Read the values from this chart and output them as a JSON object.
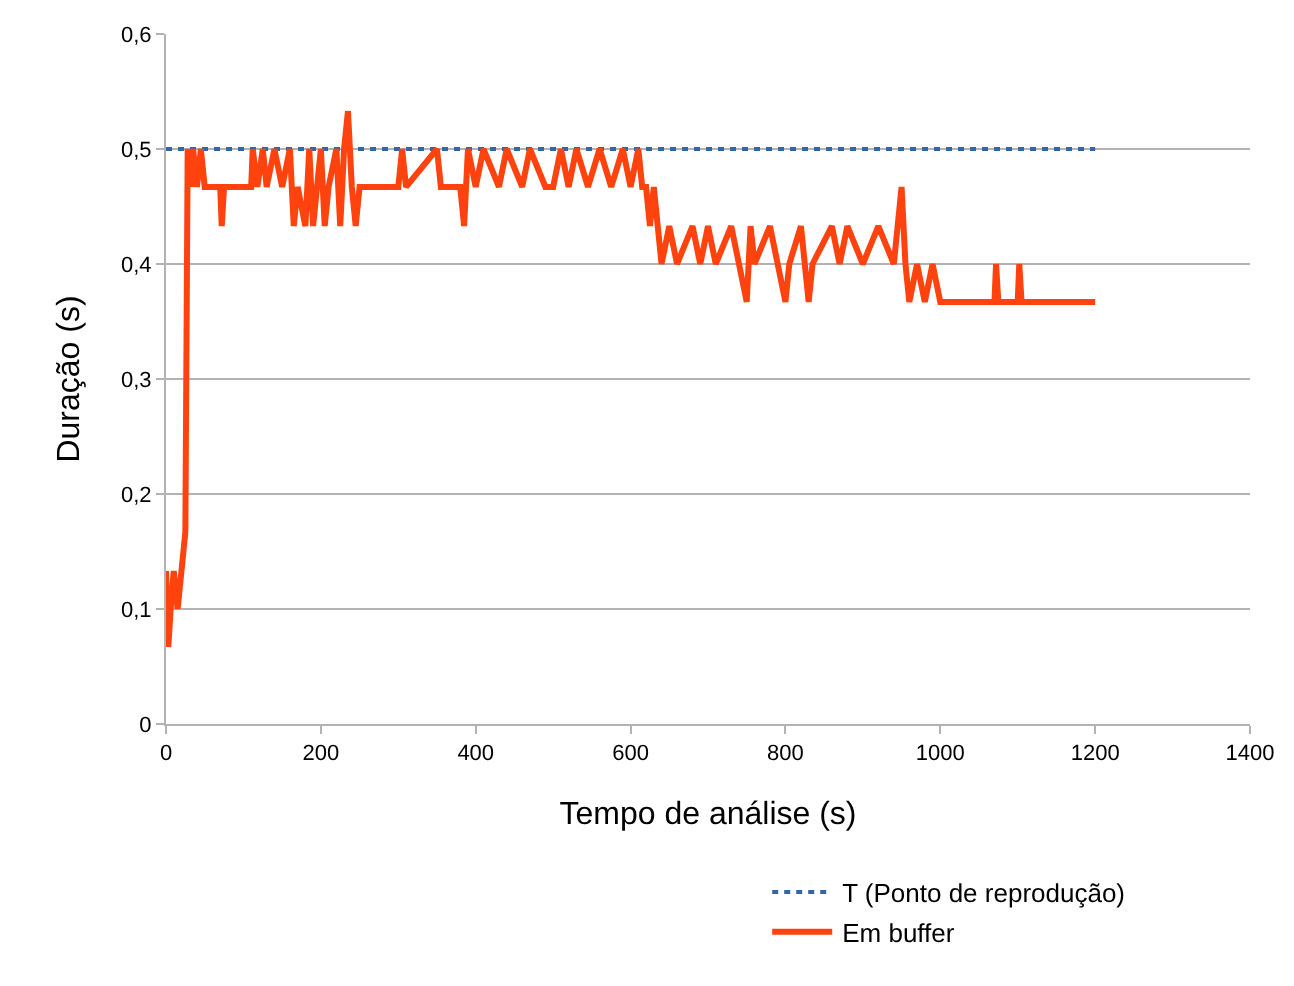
{
  "chart_data": {
    "type": "line",
    "xlabel": "Tempo de análise (s)",
    "ylabel": "Duração (s)",
    "xlim": [
      0,
      1400
    ],
    "xticks": [
      0,
      200,
      400,
      600,
      800,
      1000,
      1200,
      1400
    ],
    "ylim": [
      0,
      0.6
    ],
    "yticks": [
      {
        "value": 0,
        "label": "0"
      },
      {
        "value": 0.1,
        "label": "0,1"
      },
      {
        "value": 0.2,
        "label": "0,2"
      },
      {
        "value": 0.3,
        "label": "0,3"
      },
      {
        "value": 0.4,
        "label": "0,4"
      },
      {
        "value": 0.5,
        "label": "0,5"
      },
      {
        "value": 0.6,
        "label": "0,6"
      }
    ],
    "grid": "y",
    "legend": "bottom",
    "series": [
      {
        "name": "T (Ponto de reprodução)",
        "color": "#3465a4",
        "line_style": "dotted",
        "x": [
          0,
          1200
        ],
        "values": [
          0.5,
          0.5
        ]
      },
      {
        "name": "Em buffer",
        "color": "#ff420e",
        "line_style": "solid",
        "x": [
          0,
          3,
          6,
          10,
          15,
          20,
          25,
          28,
          32,
          35,
          40,
          45,
          50,
          70,
          72,
          75,
          110,
          112,
          118,
          125,
          130,
          140,
          150,
          160,
          165,
          170,
          180,
          185,
          190,
          200,
          205,
          210,
          220,
          225,
          230,
          235,
          240,
          245,
          250,
          300,
          305,
          310,
          350,
          355,
          380,
          385,
          390,
          400,
          410,
          430,
          440,
          460,
          470,
          490,
          500,
          510,
          520,
          530,
          545,
          560,
          575,
          590,
          600,
          610,
          615,
          620,
          625,
          630,
          640,
          650,
          660,
          680,
          690,
          700,
          710,
          730,
          740,
          750,
          755,
          760,
          780,
          790,
          800,
          805,
          820,
          830,
          835,
          860,
          870,
          880,
          900,
          920,
          940,
          950,
          955,
          960,
          970,
          980,
          990,
          1000,
          1070,
          1072,
          1075,
          1100,
          1102,
          1105,
          1200
        ],
        "values": [
          0.133,
          0.067,
          0.1,
          0.133,
          0.1,
          0.133,
          0.167,
          0.5,
          0.467,
          0.5,
          0.467,
          0.5,
          0.467,
          0.467,
          0.433,
          0.467,
          0.467,
          0.5,
          0.467,
          0.5,
          0.467,
          0.5,
          0.467,
          0.5,
          0.433,
          0.467,
          0.433,
          0.5,
          0.433,
          0.5,
          0.433,
          0.467,
          0.5,
          0.433,
          0.5,
          0.533,
          0.467,
          0.433,
          0.467,
          0.467,
          0.5,
          0.467,
          0.5,
          0.467,
          0.467,
          0.433,
          0.5,
          0.467,
          0.5,
          0.467,
          0.5,
          0.467,
          0.5,
          0.467,
          0.467,
          0.5,
          0.467,
          0.5,
          0.467,
          0.5,
          0.467,
          0.5,
          0.467,
          0.5,
          0.467,
          0.467,
          0.433,
          0.467,
          0.4,
          0.433,
          0.4,
          0.433,
          0.4,
          0.433,
          0.4,
          0.433,
          0.4,
          0.367,
          0.433,
          0.4,
          0.433,
          0.4,
          0.367,
          0.4,
          0.433,
          0.367,
          0.4,
          0.433,
          0.4,
          0.433,
          0.4,
          0.433,
          0.4,
          0.467,
          0.4,
          0.367,
          0.4,
          0.367,
          0.4,
          0.367,
          0.367,
          0.4,
          0.367,
          0.367,
          0.4,
          0.367,
          0.367
        ]
      }
    ]
  }
}
